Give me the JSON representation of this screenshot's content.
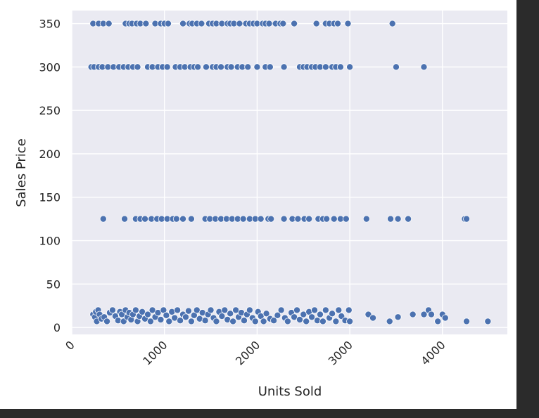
{
  "chart_data": {
    "type": "scatter",
    "xlabel": "Units Sold",
    "ylabel": "Sales Price",
    "xlim": [
      0,
      4700
    ],
    "ylim": [
      -8,
      365
    ],
    "xticks": [
      0,
      1000,
      2000,
      3000,
      4000
    ],
    "xtick_labels": [
      "0",
      "1000",
      "2000",
      "3000",
      "4000"
    ],
    "yticks": [
      0,
      50,
      100,
      150,
      200,
      250,
      300,
      350
    ],
    "ytick_labels": [
      "0",
      "50",
      "100",
      "150",
      "200",
      "250",
      "300",
      "350"
    ],
    "grid": true,
    "background": "#eaeaf2",
    "point_color": "#4c72b0",
    "series": [
      {
        "points": [
          [
            230,
            350
          ],
          [
            290,
            350
          ],
          [
            340,
            350
          ],
          [
            400,
            350
          ],
          [
            580,
            350
          ],
          [
            620,
            350
          ],
          [
            650,
            350
          ],
          [
            700,
            350
          ],
          [
            740,
            350
          ],
          [
            800,
            350
          ],
          [
            900,
            350
          ],
          [
            960,
            350
          ],
          [
            1000,
            350
          ],
          [
            1040,
            350
          ],
          [
            1200,
            350
          ],
          [
            1270,
            350
          ],
          [
            1300,
            350
          ],
          [
            1350,
            350
          ],
          [
            1400,
            350
          ],
          [
            1480,
            350
          ],
          [
            1520,
            350
          ],
          [
            1560,
            350
          ],
          [
            1620,
            350
          ],
          [
            1680,
            350
          ],
          [
            1710,
            350
          ],
          [
            1750,
            350
          ],
          [
            1810,
            350
          ],
          [
            1880,
            350
          ],
          [
            1920,
            350
          ],
          [
            1960,
            350
          ],
          [
            2000,
            350
          ],
          [
            2060,
            350
          ],
          [
            2090,
            350
          ],
          [
            2130,
            350
          ],
          [
            2200,
            350
          ],
          [
            2250,
            350
          ],
          [
            2280,
            350
          ],
          [
            2400,
            350
          ],
          [
            2640,
            350
          ],
          [
            2740,
            350
          ],
          [
            2780,
            350
          ],
          [
            2830,
            350
          ],
          [
            2870,
            350
          ],
          [
            2980,
            350
          ],
          [
            3460,
            350
          ],
          [
            210,
            300
          ],
          [
            240,
            300
          ],
          [
            290,
            300
          ],
          [
            330,
            300
          ],
          [
            390,
            300
          ],
          [
            450,
            300
          ],
          [
            510,
            300
          ],
          [
            560,
            300
          ],
          [
            610,
            300
          ],
          [
            660,
            300
          ],
          [
            710,
            300
          ],
          [
            820,
            300
          ],
          [
            870,
            300
          ],
          [
            930,
            300
          ],
          [
            980,
            300
          ],
          [
            1030,
            300
          ],
          [
            1120,
            300
          ],
          [
            1170,
            300
          ],
          [
            1220,
            300
          ],
          [
            1280,
            300
          ],
          [
            1320,
            300
          ],
          [
            1360,
            300
          ],
          [
            1450,
            300
          ],
          [
            1520,
            300
          ],
          [
            1560,
            300
          ],
          [
            1610,
            300
          ],
          [
            1680,
            300
          ],
          [
            1720,
            300
          ],
          [
            1790,
            300
          ],
          [
            1840,
            300
          ],
          [
            1900,
            300
          ],
          [
            2000,
            300
          ],
          [
            2090,
            300
          ],
          [
            2140,
            300
          ],
          [
            2290,
            300
          ],
          [
            2460,
            300
          ],
          [
            2500,
            300
          ],
          [
            2540,
            300
          ],
          [
            2590,
            300
          ],
          [
            2630,
            300
          ],
          [
            2680,
            300
          ],
          [
            2740,
            300
          ],
          [
            2810,
            300
          ],
          [
            2850,
            300
          ],
          [
            2900,
            300
          ],
          [
            3000,
            300
          ],
          [
            3500,
            300
          ],
          [
            3800,
            300
          ],
          [
            340,
            125
          ],
          [
            570,
            125
          ],
          [
            690,
            125
          ],
          [
            740,
            125
          ],
          [
            790,
            125
          ],
          [
            860,
            125
          ],
          [
            920,
            125
          ],
          [
            970,
            125
          ],
          [
            1030,
            125
          ],
          [
            1090,
            125
          ],
          [
            1130,
            125
          ],
          [
            1200,
            125
          ],
          [
            1290,
            125
          ],
          [
            1440,
            125
          ],
          [
            1490,
            125
          ],
          [
            1550,
            125
          ],
          [
            1610,
            125
          ],
          [
            1670,
            125
          ],
          [
            1730,
            125
          ],
          [
            1790,
            125
          ],
          [
            1850,
            125
          ],
          [
            1920,
            125
          ],
          [
            1980,
            125
          ],
          [
            2040,
            125
          ],
          [
            2120,
            125
          ],
          [
            2150,
            125
          ],
          [
            2290,
            125
          ],
          [
            2380,
            125
          ],
          [
            2440,
            125
          ],
          [
            2510,
            125
          ],
          [
            2560,
            125
          ],
          [
            2660,
            125
          ],
          [
            2710,
            125
          ],
          [
            2750,
            125
          ],
          [
            2830,
            125
          ],
          [
            2900,
            125
          ],
          [
            2960,
            125
          ],
          [
            3180,
            125
          ],
          [
            3440,
            125
          ],
          [
            3520,
            125
          ],
          [
            3630,
            125
          ],
          [
            4240,
            125
          ],
          [
            4260,
            125
          ],
          [
            230,
            15
          ],
          [
            250,
            12
          ],
          [
            260,
            18
          ],
          [
            270,
            7
          ],
          [
            285,
            20
          ],
          [
            300,
            15
          ],
          [
            320,
            10
          ],
          [
            350,
            12
          ],
          [
            380,
            7
          ],
          [
            410,
            17
          ],
          [
            440,
            20
          ],
          [
            470,
            13
          ],
          [
            500,
            8
          ],
          [
            520,
            18
          ],
          [
            540,
            15
          ],
          [
            560,
            7
          ],
          [
            580,
            20
          ],
          [
            600,
            12
          ],
          [
            620,
            17
          ],
          [
            640,
            9
          ],
          [
            660,
            15
          ],
          [
            690,
            20
          ],
          [
            710,
            7
          ],
          [
            730,
            13
          ],
          [
            760,
            18
          ],
          [
            790,
            10
          ],
          [
            820,
            15
          ],
          [
            850,
            7
          ],
          [
            870,
            20
          ],
          [
            900,
            12
          ],
          [
            930,
            17
          ],
          [
            960,
            9
          ],
          [
            990,
            20
          ],
          [
            1020,
            14
          ],
          [
            1050,
            7
          ],
          [
            1080,
            18
          ],
          [
            1110,
            11
          ],
          [
            1140,
            20
          ],
          [
            1170,
            8
          ],
          [
            1200,
            15
          ],
          [
            1230,
            12
          ],
          [
            1260,
            19
          ],
          [
            1290,
            7
          ],
          [
            1320,
            14
          ],
          [
            1350,
            20
          ],
          [
            1380,
            10
          ],
          [
            1410,
            17
          ],
          [
            1440,
            8
          ],
          [
            1470,
            15
          ],
          [
            1500,
            20
          ],
          [
            1530,
            11
          ],
          [
            1560,
            7
          ],
          [
            1590,
            18
          ],
          [
            1620,
            13
          ],
          [
            1650,
            20
          ],
          [
            1680,
            9
          ],
          [
            1710,
            16
          ],
          [
            1740,
            7
          ],
          [
            1770,
            20
          ],
          [
            1800,
            12
          ],
          [
            1830,
            17
          ],
          [
            1860,
            8
          ],
          [
            1890,
            15
          ],
          [
            1920,
            20
          ],
          [
            1950,
            11
          ],
          [
            1980,
            7
          ],
          [
            2010,
            18
          ],
          [
            2040,
            13
          ],
          [
            2070,
            7
          ],
          [
            2100,
            16
          ],
          [
            2140,
            10
          ],
          [
            2180,
            8
          ],
          [
            2220,
            14
          ],
          [
            2260,
            20
          ],
          [
            2300,
            11
          ],
          [
            2330,
            7
          ],
          [
            2370,
            17
          ],
          [
            2400,
            12
          ],
          [
            2430,
            20
          ],
          [
            2460,
            9
          ],
          [
            2500,
            15
          ],
          [
            2530,
            7
          ],
          [
            2560,
            18
          ],
          [
            2590,
            12
          ],
          [
            2620,
            20
          ],
          [
            2650,
            8
          ],
          [
            2680,
            15
          ],
          [
            2710,
            7
          ],
          [
            2740,
            20
          ],
          [
            2780,
            11
          ],
          [
            2810,
            16
          ],
          [
            2850,
            7
          ],
          [
            2880,
            20
          ],
          [
            2910,
            13
          ],
          [
            2950,
            8
          ],
          [
            2990,
            20
          ],
          [
            3000,
            7
          ],
          [
            3200,
            15
          ],
          [
            3250,
            11
          ],
          [
            3430,
            7
          ],
          [
            3520,
            12
          ],
          [
            3680,
            15
          ],
          [
            3800,
            15
          ],
          [
            3850,
            20
          ],
          [
            3880,
            15
          ],
          [
            3950,
            7
          ],
          [
            4000,
            15
          ],
          [
            4030,
            11
          ],
          [
            4260,
            7
          ],
          [
            4490,
            7
          ]
        ]
      }
    ]
  }
}
